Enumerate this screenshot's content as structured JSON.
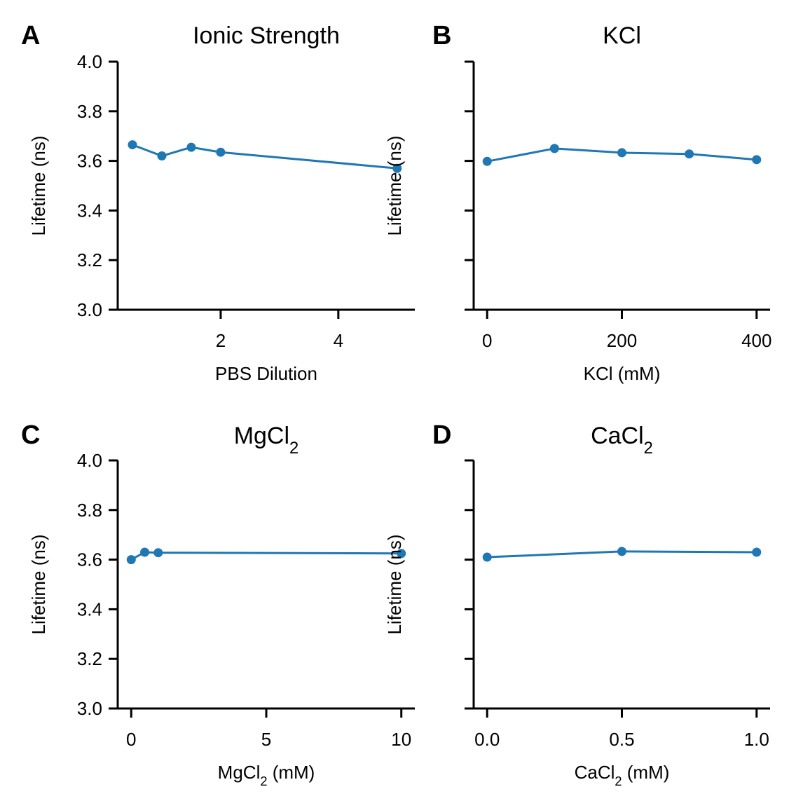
{
  "chart_data": [
    {
      "panel": "A",
      "type": "line",
      "title": "Ionic Strength",
      "title_sub": "",
      "title_suffix": "",
      "xlabel": "PBS Dilution",
      "xlabel_sub": "",
      "xlabel_suffix": "",
      "ylabel": "Lifetime (ns)",
      "xlim": [
        0.25,
        5.3
      ],
      "ylim": [
        3.0,
        4.0
      ],
      "xticks": [
        2,
        4
      ],
      "xtick_labels": [
        "2",
        "4"
      ],
      "yticks": [
        3.0,
        3.2,
        3.4,
        3.6,
        3.8,
        4.0
      ],
      "ytick_labels": [
        "3.0",
        "3.2",
        "3.4",
        "3.6",
        "3.8",
        "4.0"
      ],
      "show_ytick_labels": true,
      "grid": false,
      "series": [
        {
          "x": [
            0.5,
            1,
            1.5,
            2,
            5
          ],
          "y": [
            3.665,
            3.62,
            3.655,
            3.635,
            3.57
          ],
          "color": "#1f77b4"
        }
      ]
    },
    {
      "panel": "B",
      "type": "line",
      "title": "KCl",
      "title_sub": "",
      "title_suffix": "",
      "xlabel": "KCl (mM)",
      "xlabel_sub": "",
      "xlabel_suffix": "",
      "ylabel": "Lifetime (ns)",
      "xlim": [
        -20,
        420
      ],
      "ylim": [
        3.0,
        4.0
      ],
      "xticks": [
        0,
        200,
        400
      ],
      "xtick_labels": [
        "0",
        "200",
        "400"
      ],
      "yticks": [
        3.0,
        3.2,
        3.4,
        3.6,
        3.8,
        4.0
      ],
      "ytick_labels": [],
      "show_ytick_labels": false,
      "grid": false,
      "series": [
        {
          "x": [
            0,
            100,
            200,
            300,
            400
          ],
          "y": [
            3.598,
            3.65,
            3.633,
            3.628,
            3.605
          ],
          "color": "#1f77b4"
        }
      ]
    },
    {
      "panel": "C",
      "type": "line",
      "title": "MgCl",
      "title_sub": "2",
      "title_suffix": "",
      "xlabel": "MgCl",
      "xlabel_sub": "2",
      "xlabel_suffix": " (mM)",
      "ylabel": "Lifetime (ns)",
      "xlim": [
        -0.5,
        10.5
      ],
      "ylim": [
        3.0,
        4.0
      ],
      "xticks": [
        0,
        5,
        10
      ],
      "xtick_labels": [
        "0",
        "5",
        "10"
      ],
      "yticks": [
        3.0,
        3.2,
        3.4,
        3.6,
        3.8,
        4.0
      ],
      "ytick_labels": [
        "3.0",
        "3.2",
        "3.4",
        "3.6",
        "3.8",
        "4.0"
      ],
      "show_ytick_labels": true,
      "grid": false,
      "series": [
        {
          "x": [
            0,
            0.5,
            1,
            10
          ],
          "y": [
            3.6,
            3.63,
            3.628,
            3.625
          ],
          "color": "#1f77b4"
        }
      ]
    },
    {
      "panel": "D",
      "type": "line",
      "title": "CaCl",
      "title_sub": "2",
      "title_suffix": "",
      "xlabel": "CaCl",
      "xlabel_sub": "2",
      "xlabel_suffix": " (mM)",
      "ylabel": "Lifetime (ns)",
      "xlim": [
        -0.05,
        1.05
      ],
      "ylim": [
        3.0,
        4.0
      ],
      "xticks": [
        0.0,
        0.5,
        1.0
      ],
      "xtick_labels": [
        "0.0",
        "0.5",
        "1.0"
      ],
      "yticks": [
        3.0,
        3.2,
        3.4,
        3.6,
        3.8,
        4.0
      ],
      "ytick_labels": [],
      "show_ytick_labels": false,
      "grid": false,
      "series": [
        {
          "x": [
            0,
            0.5,
            1.0
          ],
          "y": [
            3.61,
            3.633,
            3.63
          ],
          "color": "#1f77b4"
        }
      ]
    }
  ]
}
